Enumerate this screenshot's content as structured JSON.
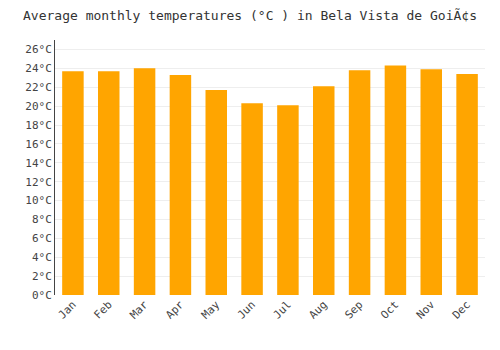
{
  "chart_data": {
    "type": "bar",
    "title": "Average monthly temperatures (°C ) in Bela Vista de GoiÃ¢s",
    "categories": [
      "Jan",
      "Feb",
      "Mar",
      "Apr",
      "May",
      "Jun",
      "Jul",
      "Aug",
      "Sep",
      "Oct",
      "Nov",
      "Dec"
    ],
    "values": [
      23.7,
      23.7,
      24.0,
      23.3,
      21.7,
      20.3,
      20.1,
      22.1,
      23.8,
      24.3,
      23.9,
      23.4
    ],
    "color": "#FFA500",
    "ylim": [
      0,
      27
    ],
    "yticks": [
      {
        "value": 0,
        "label": "0°C"
      },
      {
        "value": 2,
        "label": "2°C"
      },
      {
        "value": 4,
        "label": "4°C"
      },
      {
        "value": 6,
        "label": "6°C"
      },
      {
        "value": 8,
        "label": "8°C"
      },
      {
        "value": 10,
        "label": "10°C"
      },
      {
        "value": 12,
        "label": "12°C"
      },
      {
        "value": 14,
        "label": "14°C"
      },
      {
        "value": 16,
        "label": "16°C"
      },
      {
        "value": 18,
        "label": "18°C"
      },
      {
        "value": 20,
        "label": "20°C"
      },
      {
        "value": 22,
        "label": "22°C"
      },
      {
        "value": 24,
        "label": "24°C"
      },
      {
        "value": 26,
        "label": "26°C"
      }
    ],
    "grid": true
  }
}
